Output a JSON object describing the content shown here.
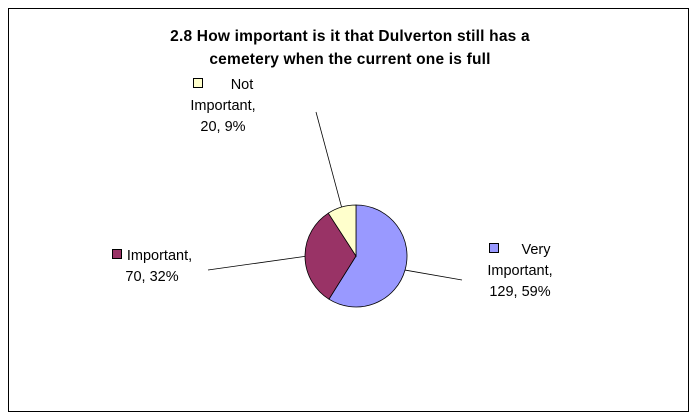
{
  "chart_data": {
    "type": "pie",
    "title_line1": "2.8 How important is it that Dulverton still has a",
    "title_line2": "cemetery when the current one is full",
    "slices": [
      {
        "name_line1": "Very",
        "name_line2": "Important,",
        "value_label": "129, 59%",
        "value": 129,
        "percent": 59,
        "color": "#9999ff"
      },
      {
        "name_line1": "Important,",
        "value_label": "70, 32%",
        "value": 70,
        "percent": 32,
        "color": "#993366"
      },
      {
        "name_line1": "Not",
        "name_line2": "Important,",
        "value_label": "20, 9%",
        "value": 20,
        "percent": 9,
        "color": "#ffffcc"
      }
    ]
  }
}
